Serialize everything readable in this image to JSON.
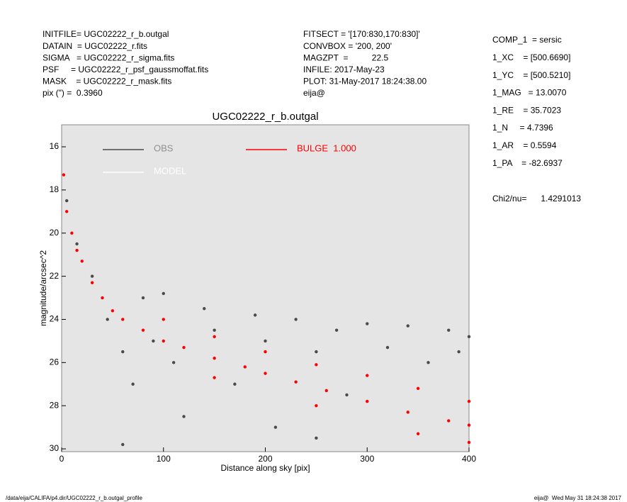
{
  "header": {
    "left": [
      "INITFILE= UGC02222_r_b.outgal",
      "DATAIN  = UGC02222_r.fits",
      "SIGMA   = UGC02222_r_sigma.fits",
      "PSF     = UGC02222_r_psf_gaussmoffat.fits",
      "MASK    = UGC02222_r_mask.fits",
      "pix (\") =  0.3960"
    ],
    "middle": [
      "FITSECT = '[170:830,170:830]'",
      "CONVBOX = '200, 200'",
      "MAGZPT  =          22.5",
      "INFILE: 2017-May-23",
      "PLOT: 31-May-2017 18:24:38.00",
      "eija@"
    ],
    "params": [
      "COMP_1  = sersic",
      "1_XC    = [500.6690]",
      "1_YC    = [500.5210]",
      "1_MAG   = 13.0070",
      "1_RE    = 35.7023",
      "1_N     = 4.7396",
      "1_AR    = 0.5594",
      "1_PA    = -82.6937"
    ],
    "chi": "Chi2/nu=      1.4291013"
  },
  "footer": {
    "left": "/data/eija/CALIFA/p4.dir/UGC02222_r_b.outgal_profile",
    "right": "eija@  Wed May 31 18:24:38 2017"
  },
  "chart_data": {
    "type": "scatter",
    "title": "UGC02222_r_b.outgal",
    "x_label": "Distance along sky [pix]",
    "y_label": "magnitude/arcsec^2",
    "xlim": [
      0,
      400
    ],
    "xticks": [
      0,
      100,
      200,
      300,
      400
    ],
    "ylim": [
      30.13,
      14.98
    ],
    "yticks": [
      16,
      18,
      20,
      22,
      24,
      26,
      28,
      30
    ],
    "background": "#e5e5e5",
    "series": [
      {
        "name": "OBS",
        "color": "#4a4a4a",
        "x": [
          5,
          15,
          30,
          45,
          60,
          70,
          80,
          90,
          100,
          110,
          120,
          140,
          150,
          170,
          190,
          200,
          210,
          230,
          250,
          270,
          280,
          300,
          320,
          340,
          360,
          380,
          390,
          400,
          60,
          250
        ],
        "values": [
          18.5,
          20.5,
          22,
          24,
          25.5,
          27,
          23,
          25,
          22.8,
          26,
          28.5,
          23.5,
          24.5,
          27,
          23.8,
          25,
          29,
          24,
          25.5,
          24.5,
          27.5,
          24.2,
          25.3,
          24.3,
          26,
          24.5,
          25.5,
          24.8,
          29.8,
          29.5
        ]
      },
      {
        "name": "MODEL",
        "color": "#ffffff",
        "x": [],
        "values": []
      },
      {
        "name": "BULGE  1.000",
        "color": "#ff0000",
        "x": [
          2,
          5,
          10,
          15,
          20,
          30,
          40,
          50,
          60,
          80,
          100,
          120,
          150,
          180,
          200,
          230,
          260,
          300,
          340,
          380,
          400,
          100,
          150,
          200,
          250,
          300,
          350,
          400,
          150,
          250,
          350,
          400
        ],
        "values": [
          17.3,
          19,
          20,
          20.8,
          21.3,
          22.3,
          23,
          23.6,
          24,
          24.5,
          25,
          25.3,
          25.8,
          26.2,
          26.5,
          26.9,
          27.3,
          27.8,
          28.3,
          28.7,
          28.9,
          24,
          24.8,
          25.5,
          26.1,
          26.6,
          27.2,
          27.8,
          26.7,
          28,
          29.3,
          29.7
        ]
      }
    ]
  }
}
